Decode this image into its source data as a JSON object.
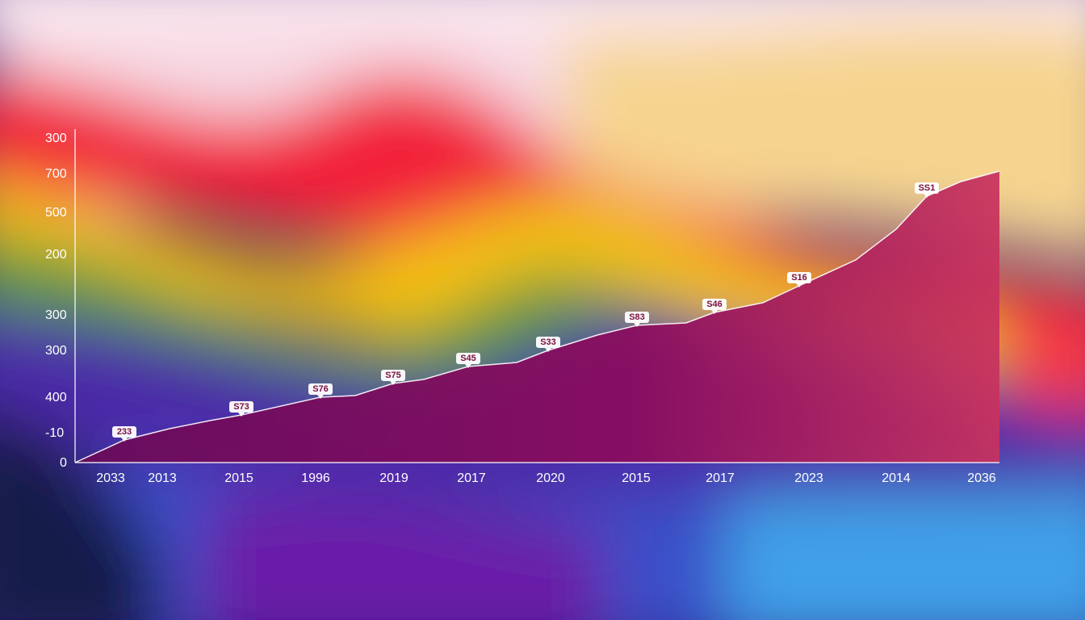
{
  "y_axis_labels": [
    "300",
    "700",
    "500",
    "200",
    "300",
    "300",
    "400",
    "-10",
    "0"
  ],
  "x_axis_labels": [
    "2033",
    "2013",
    "2015",
    "1996",
    "2019",
    "2017",
    "2020",
    "2015",
    "2017",
    "2023",
    "2014",
    "2036"
  ],
  "point_labels": [
    "233",
    "S73",
    "S76",
    "S75",
    "S45",
    "S33",
    "S83",
    "S46",
    "S16",
    "SS1"
  ]
}
